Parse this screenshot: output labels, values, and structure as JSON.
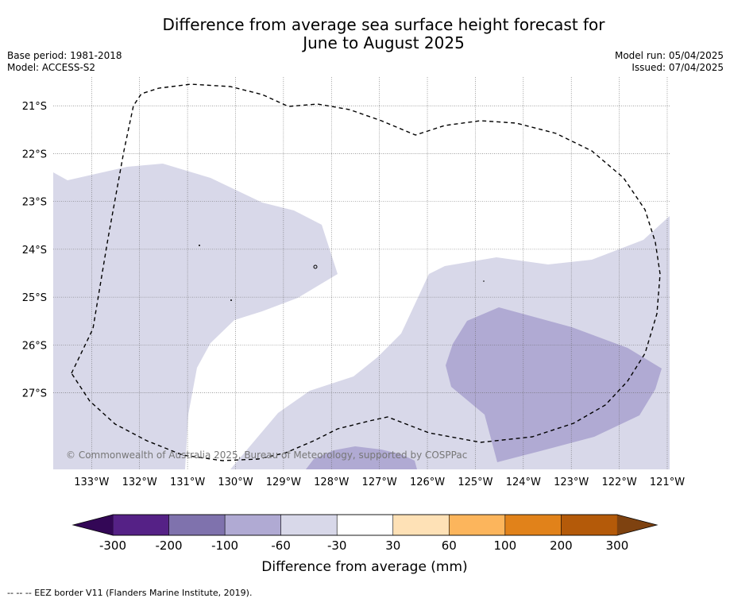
{
  "title": {
    "line1": "Difference from average sea surface height forecast for",
    "line2": "June to August 2025"
  },
  "meta": {
    "base_period": "Base period: 1981-2018",
    "model": "Model: ACCESS-S2",
    "model_run": "Model run: 05/04/2025",
    "issued": "Issued: 07/04/2025"
  },
  "map": {
    "lon_ticks": [
      "133°W",
      "132°W",
      "131°W",
      "130°W",
      "129°W",
      "128°W",
      "127°W",
      "126°W",
      "125°W",
      "124°W",
      "123°W",
      "122°W",
      "121°W"
    ],
    "lat_ticks": [
      "21°S",
      "22°S",
      "23°S",
      "24°S",
      "25°S",
      "26°S",
      "27°S"
    ],
    "lon_range": [
      -133.8,
      -120.95
    ],
    "lat_range": [
      -28.6,
      -20.4
    ],
    "copyright": "© Commonwealth of Australia 2025, Bureau of Meteorology, supported by COSPPac",
    "regions": [
      {
        "category": "-60 to -30",
        "color": "#d8d8e9"
      },
      {
        "category": "-100 to -60",
        "color": "#b0aad3"
      }
    ],
    "eez_border": "dashed"
  },
  "colorbar": {
    "title": "Difference from average (mm)",
    "boundaries": [
      "-300",
      "-200",
      "-100",
      "-60",
      "-30",
      "30",
      "60",
      "100",
      "200",
      "300"
    ],
    "colors": [
      "#552186",
      "#7f72ad",
      "#b0aad3",
      "#d8d8e9",
      "#ffffff",
      "#fee1b6",
      "#fcb55c",
      "#e1821a",
      "#b45a09"
    ],
    "under_color": "#330756",
    "over_color": "#7e4210"
  },
  "footer": {
    "legend_text": "-- -- -- EEZ border V11 (Flanders Marine Institute, 2019)."
  }
}
